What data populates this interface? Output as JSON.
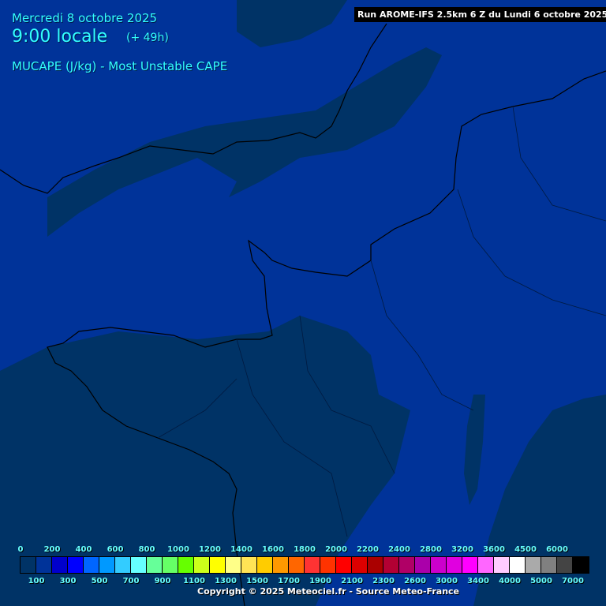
{
  "header": {
    "date": "Mercredi 8 octobre 2025",
    "time": "9:00 locale",
    "lead": "(+ 49h)",
    "parameter": "MUCAPE (J/kg) - Most Unstable CAPE",
    "run": "Run AROME-IFS 2.5km 6 Z du Lundi 6 octobre 2025"
  },
  "map_colors": {
    "background": "#003399",
    "low_cape": "#003366",
    "coastline": "#000000"
  },
  "legend": {
    "colors": [
      "#003366",
      "#003399",
      "#0000cc",
      "#0000ff",
      "#0066ff",
      "#0099ff",
      "#33ccff",
      "#66ffff",
      "#66ff99",
      "#66ff66",
      "#66ff00",
      "#ccff1a",
      "#ffff00",
      "#ffff88",
      "#ffe455",
      "#ffcc00",
      "#ff9900",
      "#ff6600",
      "#ff3333",
      "#ff3300",
      "#ff0000",
      "#dd0000",
      "#aa0000",
      "#b30033",
      "#b00066",
      "#aa00aa",
      "#cc00cc",
      "#e000e0",
      "#ff00ff",
      "#ff66ff",
      "#ffccff",
      "#ffffff",
      "#aaaaaa",
      "#808080",
      "#444444",
      "#000000"
    ],
    "top_labels": [
      "0",
      "200",
      "400",
      "600",
      "800",
      "1000",
      "1200",
      "1400",
      "1600",
      "1800",
      "2000",
      "2200",
      "2400",
      "2800",
      "3200",
      "3600",
      "4500",
      "6000"
    ],
    "bottom_labels": [
      "100",
      "300",
      "500",
      "700",
      "900",
      "1100",
      "1300",
      "1500",
      "1700",
      "1900",
      "2100",
      "2300",
      "2600",
      "3000",
      "3400",
      "4000",
      "5000",
      "7000"
    ]
  },
  "footer": {
    "copyright": "Copyright © 2025 Meteociel.fr - Source Meteo-France"
  }
}
